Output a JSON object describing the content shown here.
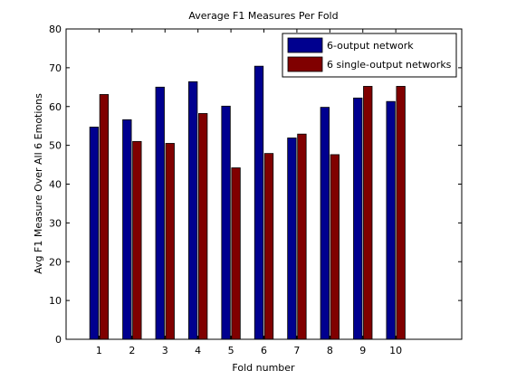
{
  "chart_data": {
    "type": "bar",
    "title": "Average F1 Measures Per Fold",
    "xlabel": "Fold number",
    "ylabel": "Avg F1 Measure Over All 6 Emotions",
    "categories": [
      "1",
      "2",
      "3",
      "4",
      "5",
      "6",
      "7",
      "8",
      "9",
      "10"
    ],
    "xlim": [
      0,
      12
    ],
    "ylim": [
      0,
      80
    ],
    "yticks": [
      0,
      10,
      20,
      30,
      40,
      50,
      60,
      70,
      80
    ],
    "grid": false,
    "legend_position": "top-right",
    "series": [
      {
        "name": "6-output network",
        "color": "#00008f",
        "values": [
          54.7,
          56.6,
          65.0,
          66.4,
          60.1,
          70.4,
          51.9,
          59.8,
          62.2,
          61.3
        ]
      },
      {
        "name": "6 single-output networks",
        "color": "#800000",
        "values": [
          63.1,
          51.0,
          50.5,
          58.2,
          44.2,
          47.9,
          52.9,
          47.6,
          65.2,
          65.2
        ]
      }
    ]
  }
}
